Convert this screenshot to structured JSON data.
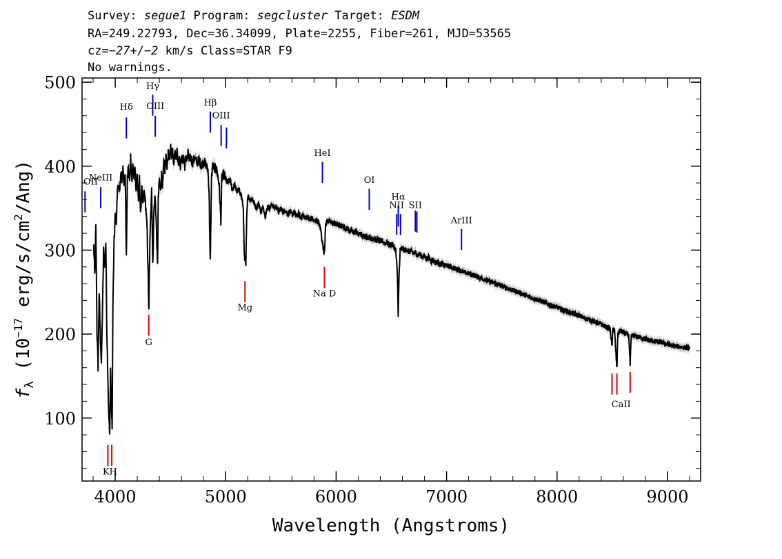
{
  "header": {
    "line1": [
      {
        "t": "Survey: ",
        "it": false
      },
      {
        "t": "segue1",
        "it": true
      },
      {
        "t": " Program: ",
        "it": false
      },
      {
        "t": "segcluster",
        "it": true
      },
      {
        "t": " Target: ",
        "it": false
      },
      {
        "t": "ESDM",
        "it": true
      }
    ],
    "line2": "RA=249.22793, Dec=36.34099, Plate=2255, Fiber=261, MJD=53565",
    "line3": [
      {
        "t": "cz=",
        "it": false
      },
      {
        "t": "−27",
        "it": true
      },
      {
        "t": "+/",
        "it": false
      },
      {
        "t": "−2",
        "it": true
      },
      {
        "t": " km/s Class=STAR F9",
        "it": false
      }
    ],
    "line4": "No warnings."
  },
  "chart_data": {
    "type": "line",
    "xlabel": "Wavelength (Angstroms)",
    "ylabel": "f_λ (10^-17 erg/s/cm^2/Ang)",
    "ylabel_parts": {
      "f": "f",
      "sub": "λ",
      "pre": " (10",
      "exp1": "−17",
      "mid": " erg/s/cm",
      "exp2": "2",
      "post": "/Ang)"
    },
    "xlim": [
      3700,
      9300
    ],
    "ylim": [
      25,
      505
    ],
    "xticks": [
      4000,
      5000,
      6000,
      7000,
      8000,
      9000
    ],
    "yticks": [
      100,
      200,
      300,
      400,
      500
    ],
    "grid": false,
    "colors": {
      "flux": "#000000",
      "error": "#bbbbbb",
      "emission": "#0000cc",
      "absorption": "#dd0000"
    },
    "spectrum_anchors": [
      [
        3805,
        305
      ],
      [
        3815,
        270
      ],
      [
        3825,
        328
      ],
      [
        3835,
        205
      ],
      [
        3845,
        160
      ],
      [
        3855,
        250
      ],
      [
        3865,
        200
      ],
      [
        3875,
        165
      ],
      [
        3885,
        230
      ],
      [
        3895,
        300
      ],
      [
        3905,
        280
      ],
      [
        3915,
        310
      ],
      [
        3925,
        200
      ],
      [
        3933,
        155
      ],
      [
        3940,
        110
      ],
      [
        3950,
        78
      ],
      [
        3958,
        160
      ],
      [
        3965,
        120
      ],
      [
        3972,
        85
      ],
      [
        3980,
        240
      ],
      [
        3990,
        310
      ],
      [
        4000,
        340
      ],
      [
        4010,
        335
      ],
      [
        4020,
        370
      ],
      [
        4030,
        380
      ],
      [
        4040,
        365
      ],
      [
        4050,
        395
      ],
      [
        4060,
        380
      ],
      [
        4070,
        400
      ],
      [
        4080,
        375
      ],
      [
        4090,
        395
      ],
      [
        4101,
        290
      ],
      [
        4110,
        385
      ],
      [
        4120,
        405
      ],
      [
        4130,
        380
      ],
      [
        4140,
        410
      ],
      [
        4150,
        380
      ],
      [
        4160,
        402
      ],
      [
        4170,
        385
      ],
      [
        4180,
        400
      ],
      [
        4190,
        370
      ],
      [
        4200,
        390
      ],
      [
        4210,
        360
      ],
      [
        4220,
        385
      ],
      [
        4230,
        340
      ],
      [
        4240,
        378
      ],
      [
        4250,
        350
      ],
      [
        4260,
        370
      ],
      [
        4270,
        362
      ],
      [
        4280,
        345
      ],
      [
        4290,
        320
      ],
      [
        4300,
        260
      ],
      [
        4305,
        225
      ],
      [
        4310,
        280
      ],
      [
        4320,
        340
      ],
      [
        4330,
        375
      ],
      [
        4340,
        280
      ],
      [
        4350,
        345
      ],
      [
        4360,
        365
      ],
      [
        4370,
        340
      ],
      [
        4383,
        280
      ],
      [
        4390,
        360
      ],
      [
        4400,
        385
      ],
      [
        4410,
        370
      ],
      [
        4420,
        390
      ],
      [
        4430,
        375
      ],
      [
        4440,
        405
      ],
      [
        4450,
        395
      ],
      [
        4460,
        410
      ],
      [
        4470,
        400
      ],
      [
        4480,
        415
      ],
      [
        4490,
        405
      ],
      [
        4500,
        425
      ],
      [
        4510,
        412
      ],
      [
        4520,
        420
      ],
      [
        4530,
        405
      ],
      [
        4540,
        415
      ],
      [
        4550,
        412
      ],
      [
        4560,
        418
      ],
      [
        4570,
        405
      ],
      [
        4580,
        413
      ],
      [
        4590,
        400
      ],
      [
        4600,
        410
      ],
      [
        4610,
        405
      ],
      [
        4620,
        412
      ],
      [
        4630,
        400
      ],
      [
        4640,
        410
      ],
      [
        4650,
        408
      ],
      [
        4660,
        415
      ],
      [
        4670,
        405
      ],
      [
        4680,
        412
      ],
      [
        4700,
        404
      ],
      [
        4720,
        410
      ],
      [
        4740,
        404
      ],
      [
        4760,
        408
      ],
      [
        4780,
        400
      ],
      [
        4800,
        406
      ],
      [
        4820,
        402
      ],
      [
        4840,
        395
      ],
      [
        4850,
        370
      ],
      [
        4858,
        300
      ],
      [
        4861,
        285
      ],
      [
        4865,
        320
      ],
      [
        4872,
        385
      ],
      [
        4880,
        400
      ],
      [
        4900,
        398
      ],
      [
        4920,
        395
      ],
      [
        4940,
        380
      ],
      [
        4957,
        335
      ],
      [
        4965,
        385
      ],
      [
        4980,
        390
      ],
      [
        5000,
        385
      ],
      [
        5020,
        380
      ],
      [
        5040,
        384
      ],
      [
        5060,
        372
      ],
      [
        5080,
        378
      ],
      [
        5100,
        370
      ],
      [
        5120,
        372
      ],
      [
        5140,
        366
      ],
      [
        5160,
        350
      ],
      [
        5167,
        300
      ],
      [
        5173,
        285
      ],
      [
        5177,
        290
      ],
      [
        5183,
        280
      ],
      [
        5190,
        340
      ],
      [
        5200,
        365
      ],
      [
        5220,
        360
      ],
      [
        5240,
        362
      ],
      [
        5260,
        355
      ],
      [
        5280,
        350
      ],
      [
        5300,
        356
      ],
      [
        5320,
        345
      ],
      [
        5340,
        352
      ],
      [
        5360,
        340
      ],
      [
        5380,
        352
      ],
      [
        5400,
        350
      ],
      [
        5420,
        355
      ],
      [
        5440,
        350
      ],
      [
        5460,
        352
      ],
      [
        5480,
        345
      ],
      [
        5500,
        350
      ],
      [
        5520,
        345
      ],
      [
        5540,
        348
      ],
      [
        5560,
        343
      ],
      [
        5580,
        346
      ],
      [
        5600,
        342
      ],
      [
        5620,
        345
      ],
      [
        5640,
        340
      ],
      [
        5660,
        343
      ],
      [
        5680,
        338
      ],
      [
        5700,
        342
      ],
      [
        5720,
        338
      ],
      [
        5740,
        340
      ],
      [
        5760,
        336
      ],
      [
        5780,
        338
      ],
      [
        5800,
        334
      ],
      [
        5820,
        336
      ],
      [
        5840,
        333
      ],
      [
        5860,
        325
      ],
      [
        5880,
        305
      ],
      [
        5890,
        298
      ],
      [
        5896,
        302
      ],
      [
        5905,
        330
      ],
      [
        5920,
        335
      ],
      [
        5940,
        334
      ],
      [
        5960,
        333
      ],
      [
        5980,
        332
      ],
      [
        6000,
        331
      ],
      [
        6020,
        330
      ],
      [
        6040,
        328
      ],
      [
        6060,
        329
      ],
      [
        6080,
        325
      ],
      [
        6100,
        327
      ],
      [
        6120,
        322
      ],
      [
        6140,
        325
      ],
      [
        6160,
        321
      ],
      [
        6180,
        323
      ],
      [
        6200,
        318
      ],
      [
        6220,
        320
      ],
      [
        6240,
        316
      ],
      [
        6260,
        318
      ],
      [
        6280,
        315
      ],
      [
        6300,
        316
      ],
      [
        6320,
        313
      ],
      [
        6340,
        315
      ],
      [
        6360,
        311
      ],
      [
        6380,
        313
      ],
      [
        6400,
        310
      ],
      [
        6420,
        311
      ],
      [
        6440,
        308
      ],
      [
        6460,
        310
      ],
      [
        6480,
        306
      ],
      [
        6500,
        307
      ],
      [
        6520,
        305
      ],
      [
        6540,
        300
      ],
      [
        6555,
        270
      ],
      [
        6562,
        223
      ],
      [
        6570,
        270
      ],
      [
        6580,
        300
      ],
      [
        6600,
        302
      ],
      [
        6620,
        300
      ],
      [
        6640,
        301
      ],
      [
        6660,
        298
      ],
      [
        6680,
        299
      ],
      [
        6700,
        296
      ],
      [
        6720,
        297
      ],
      [
        6740,
        294
      ],
      [
        6760,
        295
      ],
      [
        6780,
        292
      ],
      [
        6800,
        293
      ],
      [
        6820,
        290
      ],
      [
        6840,
        291
      ],
      [
        6860,
        287
      ],
      [
        6880,
        288
      ],
      [
        6900,
        285
      ],
      [
        6920,
        286
      ],
      [
        6940,
        283
      ],
      [
        6960,
        284
      ],
      [
        6980,
        281
      ],
      [
        7000,
        282
      ],
      [
        7050,
        279
      ],
      [
        7100,
        277
      ],
      [
        7150,
        274
      ],
      [
        7200,
        272
      ],
      [
        7250,
        270
      ],
      [
        7300,
        267
      ],
      [
        7350,
        265
      ],
      [
        7400,
        262
      ],
      [
        7450,
        260
      ],
      [
        7500,
        257
      ],
      [
        7550,
        255
      ],
      [
        7600,
        252
      ],
      [
        7650,
        250
      ],
      [
        7700,
        247
      ],
      [
        7750,
        244
      ],
      [
        7800,
        242
      ],
      [
        7850,
        240
      ],
      [
        7900,
        237
      ],
      [
        7950,
        234
      ],
      [
        8000,
        232
      ],
      [
        8050,
        229
      ],
      [
        8100,
        227
      ],
      [
        8150,
        224
      ],
      [
        8200,
        222
      ],
      [
        8250,
        219
      ],
      [
        8300,
        217
      ],
      [
        8350,
        214
      ],
      [
        8400,
        212
      ],
      [
        8450,
        208
      ],
      [
        8480,
        206
      ],
      [
        8498,
        185
      ],
      [
        8505,
        206
      ],
      [
        8520,
        205
      ],
      [
        8542,
        158
      ],
      [
        8550,
        200
      ],
      [
        8570,
        204
      ],
      [
        8600,
        202
      ],
      [
        8630,
        200
      ],
      [
        8650,
        198
      ],
      [
        8662,
        163
      ],
      [
        8672,
        197
      ],
      [
        8700,
        198
      ],
      [
        8750,
        196
      ],
      [
        8800,
        194
      ],
      [
        8850,
        192
      ],
      [
        8900,
        191
      ],
      [
        8950,
        190
      ],
      [
        9000,
        188
      ],
      [
        9050,
        186
      ],
      [
        9100,
        185
      ],
      [
        9150,
        184
      ],
      [
        9200,
        183
      ]
    ],
    "emission_lines": [
      {
        "label": "OII",
        "wave": 3727,
        "y0": 345,
        "y1": 370,
        "label_y": 378,
        "color": "#0000cc"
      },
      {
        "label": "NeIII",
        "wave": 3869,
        "y0": 350,
        "y1": 375,
        "label_y": 383,
        "color": "#0000cc"
      },
      {
        "label": "Hδ",
        "wave": 4101,
        "y0": 433,
        "y1": 458,
        "label_y": 467,
        "color": "#0000cc"
      },
      {
        "label": "Hγ",
        "wave": 4340,
        "y0": 460,
        "y1": 485,
        "label_y": 492,
        "color": "#0000cc"
      },
      {
        "label": "OIII",
        "wave": 4363,
        "y0": 435,
        "y1": 460,
        "label_y": 468,
        "color": "#0000cc"
      },
      {
        "label": "Hβ",
        "wave": 4861,
        "y0": 440,
        "y1": 465,
        "label_y": 472,
        "color": "#0000cc"
      },
      {
        "label": "OIII",
        "wave": 4959,
        "y0": 424,
        "y1": 449,
        "label_y": 457,
        "color": "#0000cc"
      },
      {
        "label": "OIII",
        "wave": 5007,
        "y0": 421,
        "y1": 446,
        "label_y": 0,
        "color": "#0000cc"
      },
      {
        "label": "HeI",
        "wave": 5876,
        "y0": 380,
        "y1": 405,
        "label_y": 412,
        "color": "#0000cc"
      },
      {
        "label": "OI",
        "wave": 6300,
        "y0": 348,
        "y1": 373,
        "label_y": 380,
        "color": "#0000cc"
      },
      {
        "label": "NII",
        "wave": 6548,
        "y0": 318,
        "y1": 343,
        "label_y": 350,
        "color": "#0000cc"
      },
      {
        "label": "Hα",
        "wave": 6563,
        "y0": 328,
        "y1": 353,
        "label_y": 360,
        "color": "#0000cc"
      },
      {
        "label": "NII",
        "wave": 6583,
        "y0": 318,
        "y1": 343,
        "label_y": 0,
        "color": "#0000cc"
      },
      {
        "label": "SII",
        "wave": 6717,
        "y0": 322,
        "y1": 347,
        "label_y": 350,
        "color": "#0000cc"
      },
      {
        "label": "SII",
        "wave": 6731,
        "y0": 321,
        "y1": 346,
        "label_y": 0,
        "color": "#0000cc"
      },
      {
        "label": "ArIII",
        "wave": 7135,
        "y0": 300,
        "y1": 325,
        "label_y": 332,
        "color": "#0000cc"
      }
    ],
    "absorption_lines": [
      {
        "label": "K",
        "wave": 3934,
        "y0": 43,
        "y1": 68,
        "color": "#dd0000"
      },
      {
        "label": "H",
        "wave": 3969,
        "y0": 43,
        "y1": 68,
        "color": "#dd0000"
      },
      {
        "label": "G",
        "wave": 4304,
        "y0": 198,
        "y1": 223,
        "color": "#dd0000"
      },
      {
        "label": "Mg",
        "wave": 5175,
        "y0": 238,
        "y1": 263,
        "color": "#dd0000"
      },
      {
        "label": "Na",
        "wave": 5894,
        "y0": 255,
        "y1": 280,
        "color": "#dd0000"
      },
      {
        "label": "CaII",
        "wave": 8498,
        "y0": 128,
        "y1": 153,
        "color": "#dd0000"
      },
      {
        "label": "CaII",
        "wave": 8542,
        "y0": 128,
        "y1": 153,
        "color": "#dd0000"
      },
      {
        "label": "CaII",
        "wave": 8662,
        "y0": 130,
        "y1": 155,
        "color": "#dd0000"
      }
    ],
    "absorption_labels": [
      {
        "text": "KH",
        "wave": 3952,
        "y": 33
      },
      {
        "text": "G",
        "wave": 4304,
        "y": 187
      },
      {
        "text": "Mg",
        "wave": 5175,
        "y": 228
      },
      {
        "text": "Na  D",
        "wave": 5894,
        "y": 245
      },
      {
        "text": "CaII",
        "wave": 8580,
        "y": 113
      }
    ]
  }
}
